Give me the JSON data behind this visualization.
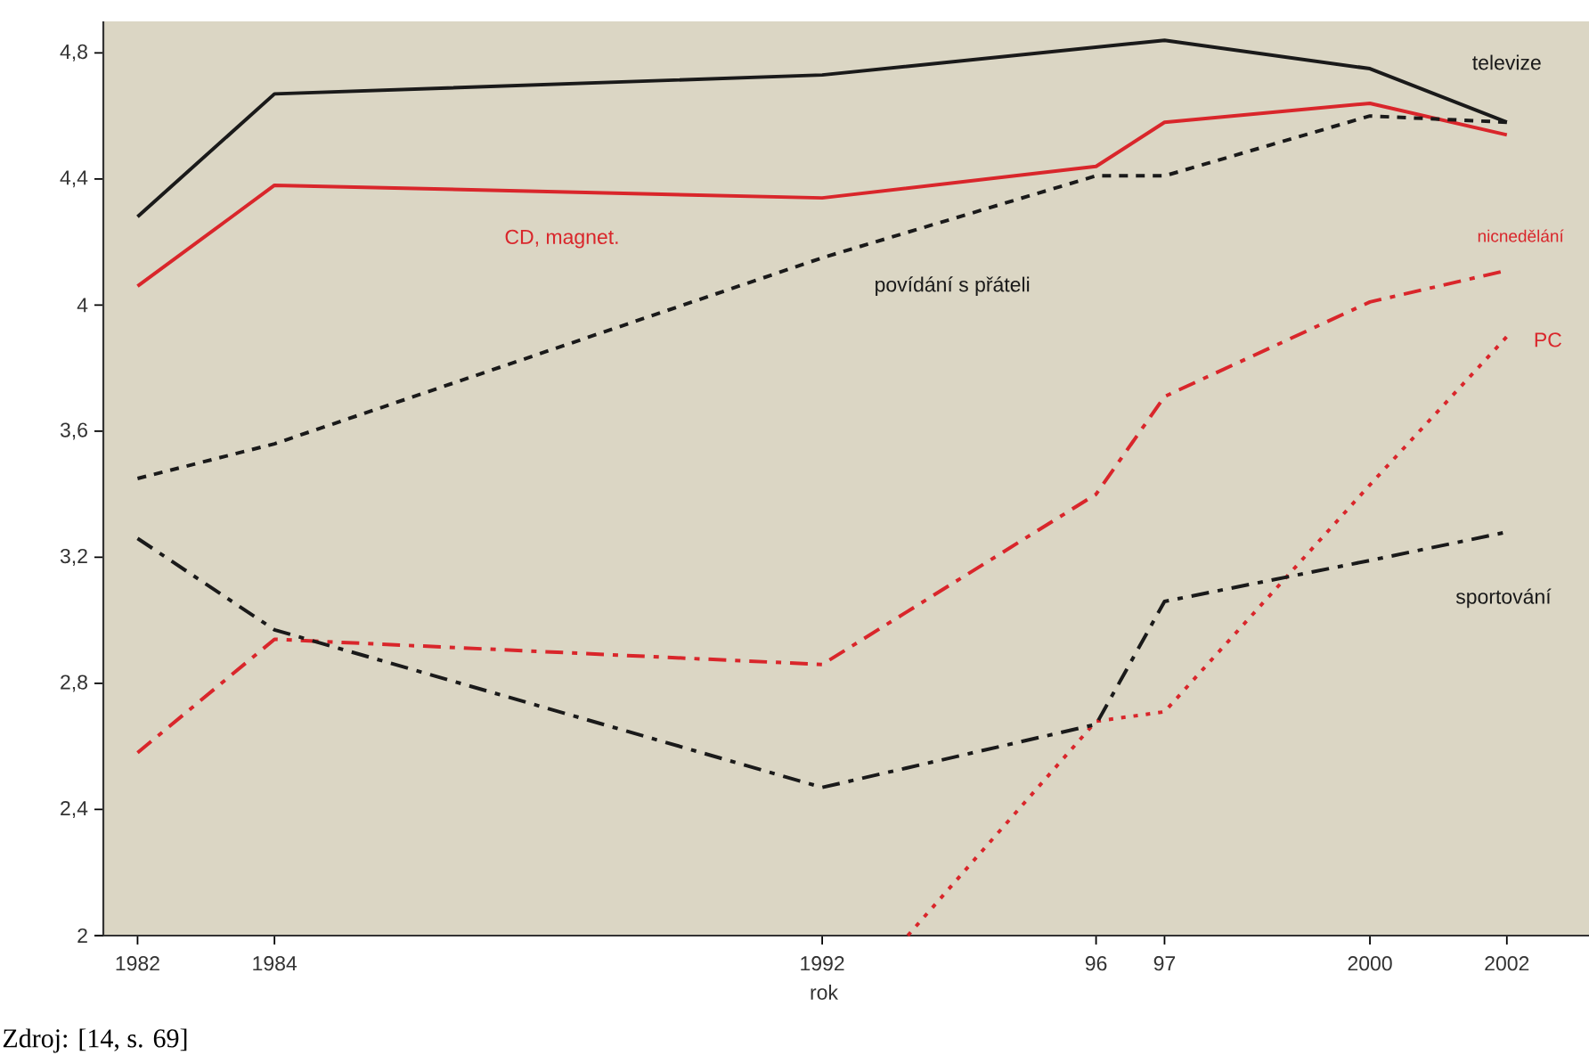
{
  "chart_data": {
    "type": "line",
    "xlabel": "rok",
    "x": [
      1982,
      1984,
      1992,
      1996,
      1997,
      2000,
      2002
    ],
    "xlim": [
      1981.5,
      2003.2
    ],
    "xticks": [
      1982,
      1984,
      1992,
      {
        "value": 1996,
        "label": "96"
      },
      {
        "value": 1997,
        "label": "97"
      },
      2000,
      2002
    ],
    "ylim": [
      2,
      4.9
    ],
    "yticks": [
      2,
      {
        "value": 2.4,
        "label": "2,4"
      },
      {
        "value": 2.8,
        "label": "2,8"
      },
      {
        "value": 3.2,
        "label": "3,2"
      },
      {
        "value": 3.6,
        "label": "3,6"
      },
      4,
      {
        "value": 4.4,
        "label": "4,4"
      },
      {
        "value": 4.8,
        "label": "4,8"
      }
    ],
    "grid": false,
    "series": [
      {
        "name": "televize",
        "color": "#1a1a1a",
        "line_style": "solid",
        "values": [
          4.28,
          4.67,
          4.73,
          null,
          4.84,
          4.75,
          4.58
        ]
      },
      {
        "name": "CD, magnet.",
        "color": "#d9262b",
        "line_style": "solid",
        "values": [
          4.06,
          4.38,
          4.34,
          4.44,
          4.58,
          4.64,
          4.54
        ]
      },
      {
        "name": "povídání s přáteli",
        "color": "#1a1a1a",
        "line_style": "dashed",
        "values": [
          3.45,
          3.56,
          4.15,
          4.41,
          4.41,
          4.6,
          4.58
        ]
      },
      {
        "name": "nicnedělání",
        "color": "#d9262b",
        "line_style": "dashdot",
        "values": [
          2.58,
          2.94,
          2.86,
          3.4,
          3.71,
          4.01,
          4.11
        ]
      },
      {
        "name": "PC",
        "color": "#d9262b",
        "line_style": "dotted",
        "x": [
          1993.25,
          1996,
          1997,
          2000,
          2002
        ],
        "values": [
          2,
          2.68,
          2.71,
          3.43,
          3.9
        ]
      },
      {
        "name": "sportování",
        "color": "#1a1a1a",
        "line_style": "dashdot",
        "values": [
          3.26,
          2.97,
          2.47,
          2.67,
          3.06,
          3.19,
          3.28
        ]
      }
    ],
    "annotations": [
      "Zdroj: [14, s. 69]"
    ]
  }
}
